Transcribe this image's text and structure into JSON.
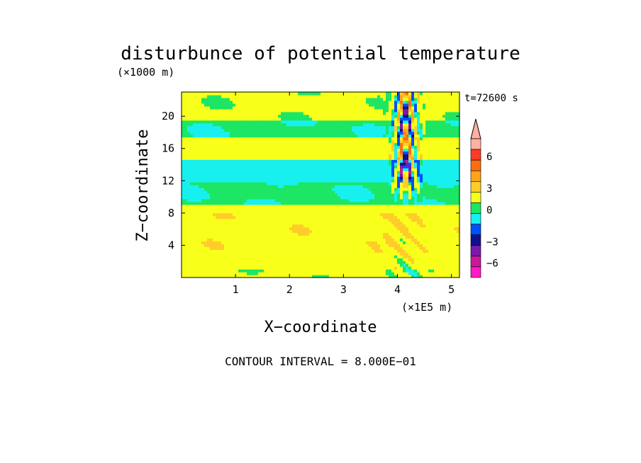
{
  "chart_data": {
    "type": "heatmap",
    "title": "disturbunce of potential temperature",
    "xlabel": "X−coordinate",
    "ylabel": "Z−coordinate",
    "x_unit": "(×1E5 m)",
    "y_unit": "(×1000 m)",
    "time_label": "t=72600 s",
    "contour_note": "CONTOUR INTERVAL = 8.000E−01",
    "xlim": [
      0,
      5.15
    ],
    "ylim": [
      0,
      23
    ],
    "x_ticks": [
      1,
      2,
      3,
      4,
      5
    ],
    "y_ticks": [
      4,
      8,
      12,
      16,
      20
    ],
    "colorbar": {
      "tick_values": [
        6,
        3,
        0,
        -3,
        -6
      ],
      "tick_labels": [
        "6",
        "3",
        "0",
        "−3",
        "−6"
      ],
      "levels": [
        {
          "color": "#ffb0a0"
        },
        {
          "color": "#ff3a2a"
        },
        {
          "color": "#ff6d12"
        },
        {
          "color": "#ffa41a"
        },
        {
          "color": "#ffcc2a"
        },
        {
          "color": "#f8ff1a"
        },
        {
          "color": "#1ce664"
        },
        {
          "color": "#18f0f0"
        },
        {
          "color": "#0050ff"
        },
        {
          "color": "#101090"
        },
        {
          "color": "#7a1aa8"
        },
        {
          "color": "#c8199a"
        },
        {
          "color": "#ff19c8"
        }
      ]
    },
    "field_bands": [
      {
        "z": [
          0.0,
          1.2
        ],
        "value": 0.3
      },
      {
        "z": [
          1.2,
          3.0
        ],
        "value": 1.2
      },
      {
        "z": [
          3.0,
          8.0
        ],
        "value": 1.6
      },
      {
        "z": [
          8.0,
          9.0
        ],
        "value": 0.6
      },
      {
        "z": [
          9.0,
          12.0
        ],
        "value": -0.6
      },
      {
        "z": [
          12.0,
          14.5
        ],
        "value": -1.4
      },
      {
        "z": [
          14.5,
          17.5
        ],
        "value": 0.8
      },
      {
        "z": [
          17.5,
          19.5
        ],
        "value": -0.6
      },
      {
        "z": [
          19.5,
          23.0
        ],
        "value": 0.3
      }
    ]
  }
}
